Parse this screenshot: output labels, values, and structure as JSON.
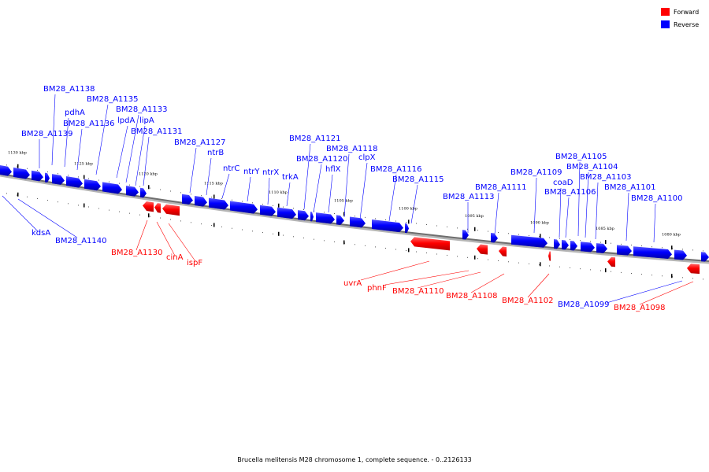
{
  "caption": "Brucella melitensis M28 chromosome 1, complete sequence. - 0..2126133",
  "legend": [
    {
      "name": "Forward",
      "color": "#ff0000"
    },
    {
      "name": "Reverse",
      "color": "#0000ff"
    }
  ],
  "ticks": [
    "1130 kbp",
    "1125 kbp",
    "1120 kbp",
    "1115 kbp",
    "1110 kbp",
    "1105 kbp",
    "1100 kbp",
    "1095 kbp",
    "1090 kbp",
    "1085 kbp",
    "1080 kbp"
  ],
  "reverse_labels": [
    "BM28_A1138",
    "BM28_A1135",
    "pdhA",
    "BM28_A1133",
    "BM28_A1136",
    "lpdA",
    "lipA",
    "BM28_A1131",
    "BM28_A1139",
    "BM28_A1127",
    "ntrB",
    "ntrC",
    "ntrY",
    "ntrX",
    "trkA",
    "BM28_A1121",
    "BM28_A1118",
    "BM28_A1120",
    "hflX",
    "clpX",
    "BM28_A1116",
    "BM28_A1115",
    "BM28_A1109",
    "BM28_A1113",
    "BM28_A1111",
    "BM28_A1105",
    "BM28_A1104",
    "coaD",
    "BM28_A1103",
    "BM28_A1106",
    "BM28_A1101",
    "BM28_A1100",
    "kdsA",
    "BM28_A1140",
    "BM28_A1099"
  ],
  "forward_labels": [
    "BM28_A1130",
    "cinA",
    "ispF",
    "uvrA",
    "phnF",
    "BM28_A1110",
    "BM28_A1108",
    "BM28_A1102",
    "BM28_A1098"
  ],
  "colors": {
    "forward": "#ff0000",
    "reverse": "#0000ff",
    "axis": "#6e6e6e"
  }
}
